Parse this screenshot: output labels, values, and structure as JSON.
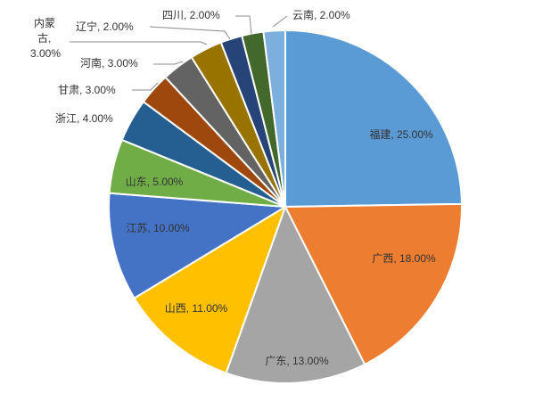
{
  "chart_data": {
    "type": "pie",
    "title": "",
    "slices": [
      {
        "name": "福建",
        "value": 25.0,
        "label": "福建, 25.00%",
        "color": "#5B9BD5"
      },
      {
        "name": "广西",
        "value": 18.0,
        "label": "广西, 18.00%",
        "color": "#ED7D31"
      },
      {
        "name": "广东",
        "value": 13.0,
        "label": "广东, 13.00%",
        "color": "#A5A5A5"
      },
      {
        "name": "山西",
        "value": 11.0,
        "label": "山西, 11.00%",
        "color": "#FFC000"
      },
      {
        "name": "江苏",
        "value": 10.0,
        "label": "江苏, 10.00%",
        "color": "#4472C4"
      },
      {
        "name": "山东",
        "value": 5.0,
        "label": "山东, 5.00%",
        "color": "#70AD47"
      },
      {
        "name": "浙江",
        "value": 4.0,
        "label": "浙江, 4.00%",
        "color": "#255E91"
      },
      {
        "name": "甘肃",
        "value": 3.0,
        "label": "甘肃, 3.00%",
        "color": "#9E480E"
      },
      {
        "name": "河南",
        "value": 3.0,
        "label": "河南, 3.00%",
        "color": "#636363"
      },
      {
        "name": "内蒙古",
        "value": 3.0,
        "label": "内蒙古, 3.00%",
        "color": "#997300"
      },
      {
        "name": "辽宁",
        "value": 2.0,
        "label": "辽宁, 2.00%",
        "color": "#264478"
      },
      {
        "name": "四川",
        "value": 2.0,
        "label": "四川, 2.00%",
        "color": "#43682B"
      },
      {
        "name": "云南",
        "value": 2.0,
        "label": "云南, 2.00%",
        "color": "#7CAFDD"
      }
    ],
    "legend": "none"
  }
}
